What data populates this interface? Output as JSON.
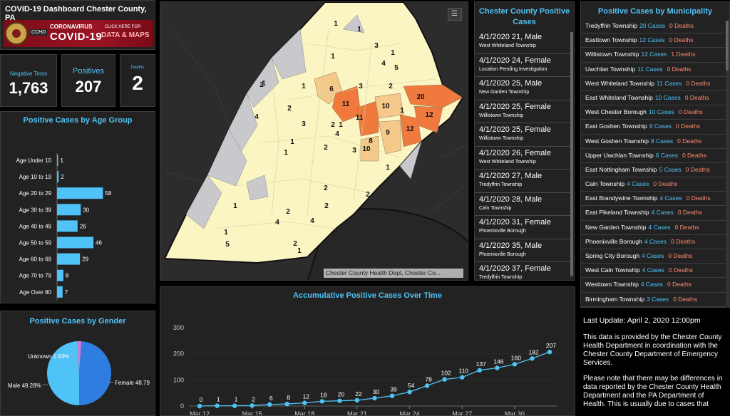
{
  "header": {
    "title": "COVID-19 Dashboard Chester County, PA",
    "banner": {
      "logo_text": "CCHD",
      "line1": "CORONAVIRUS",
      "line2": "COVID-19",
      "cta_small": "CLICK HERE FOR",
      "cta": "DATA & MAPS"
    }
  },
  "counters": {
    "negative": {
      "label": "Negative Tests",
      "value": "1,763"
    },
    "positives": {
      "label": "Positives",
      "value": "207"
    },
    "deaths": {
      "label": "Deaths",
      "value": "2"
    }
  },
  "age_chart": {
    "title": "Positive Cases by Age Group",
    "chart_data": {
      "type": "bar",
      "orientation": "horizontal",
      "categories": [
        "Age Under 10",
        "Age 10 to 19",
        "Age 20 to 29",
        "Age 30 to 39",
        "Age 40 to 49",
        "Age 50 to 59",
        "Age 60 to 69",
        "Age 70 to 79",
        "Age Over 80"
      ],
      "values": [
        1,
        2,
        58,
        30,
        26,
        46,
        29,
        8,
        7
      ],
      "xlim": [
        0,
        100
      ],
      "xticks": [
        "0",
        "50",
        "100"
      ],
      "color": "#4fc3f7"
    }
  },
  "gender_chart": {
    "title": "Positive Cases by Gender",
    "chart_data": {
      "type": "pie",
      "slices": [
        {
          "label": "Female 48.79",
          "value": 48.79,
          "color": "#2f7de1"
        },
        {
          "label": "Male 49.28%",
          "value": 49.28,
          "color": "#4fc3f7"
        },
        {
          "label": "Unknown 1.93%",
          "value": 1.93,
          "color": "#d57ad8"
        }
      ]
    }
  },
  "map": {
    "attribution": "Chester County Health Dept, Chester Co...",
    "labels": [
      {
        "t": "1",
        "x": 470,
        "y": 35
      },
      {
        "t": "1",
        "x": 503,
        "y": 43
      },
      {
        "t": "3",
        "x": 527,
        "y": 66
      },
      {
        "t": "1",
        "x": 550,
        "y": 76
      },
      {
        "t": "4",
        "x": 537,
        "y": 91
      },
      {
        "t": "5",
        "x": 555,
        "y": 97
      },
      {
        "t": "1",
        "x": 466,
        "y": 81
      },
      {
        "t": "1",
        "x": 425,
        "y": 123
      },
      {
        "t": "3",
        "x": 505,
        "y": 123
      },
      {
        "t": "2",
        "x": 547,
        "y": 123
      },
      {
        "t": "2",
        "x": 366,
        "y": 121
      },
      {
        "t": "6",
        "x": 464,
        "y": 127
      },
      {
        "t": "20",
        "x": 589,
        "y": 138
      },
      {
        "t": "11",
        "x": 484,
        "y": 148
      },
      {
        "t": "10",
        "x": 540,
        "y": 151
      },
      {
        "t": "1",
        "x": 563,
        "y": 157
      },
      {
        "t": "12",
        "x": 601,
        "y": 163
      },
      {
        "t": "2",
        "x": 405,
        "y": 154
      },
      {
        "t": "4",
        "x": 359,
        "y": 166
      },
      {
        "t": "11",
        "x": 503,
        "y": 167
      },
      {
        "t": "3",
        "x": 425,
        "y": 176
      },
      {
        "t": "2",
        "x": 466,
        "y": 177
      },
      {
        "t": "1",
        "x": 477,
        "y": 177
      },
      {
        "t": "12",
        "x": 574,
        "y": 183
      },
      {
        "t": "9",
        "x": 543,
        "y": 188
      },
      {
        "t": "4",
        "x": 472,
        "y": 190
      },
      {
        "t": "1",
        "x": 409,
        "y": 201
      },
      {
        "t": "8",
        "x": 519,
        "y": 200
      },
      {
        "t": "10",
        "x": 513,
        "y": 211
      },
      {
        "t": "2",
        "x": 456,
        "y": 209
      },
      {
        "t": "3",
        "x": 496,
        "y": 213
      },
      {
        "t": "1",
        "x": 400,
        "y": 216
      },
      {
        "t": "1",
        "x": 543,
        "y": 237
      },
      {
        "t": "2",
        "x": 456,
        "y": 266
      },
      {
        "t": "2",
        "x": 515,
        "y": 275
      },
      {
        "t": "2",
        "x": 457,
        "y": 291
      },
      {
        "t": "1",
        "x": 329,
        "y": 291
      },
      {
        "t": "2",
        "x": 403,
        "y": 299
      },
      {
        "t": "4",
        "x": 437,
        "y": 312
      },
      {
        "t": "4",
        "x": 388,
        "y": 314
      },
      {
        "t": "1",
        "x": 316,
        "y": 328
      },
      {
        "t": "5",
        "x": 318,
        "y": 345
      },
      {
        "t": "2",
        "x": 413,
        "y": 344
      },
      {
        "t": "1",
        "x": 419,
        "y": 354
      },
      {
        "t": "1",
        "x": 369,
        "y": 119
      }
    ]
  },
  "case_list": {
    "title": "Chester County Positive Cases",
    "items": [
      {
        "case": "4/1/2020  21, Male",
        "place": "West Whiteland Township"
      },
      {
        "case": "4/1/2020  24, Female",
        "place": "Location Pending Investigation"
      },
      {
        "case": "4/1/2020  25, Male",
        "place": "New Garden Township"
      },
      {
        "case": "4/1/2020  25, Female",
        "place": "Willistown Township"
      },
      {
        "case": "4/1/2020  25, Female",
        "place": "Willistown Township"
      },
      {
        "case": "4/1/2020  26, Female",
        "place": "West Whiteland Township"
      },
      {
        "case": "4/1/2020  27, Male",
        "place": "Tredyffrin Township"
      },
      {
        "case": "4/1/2020  28, Male",
        "place": "Caln Township"
      },
      {
        "case": "4/1/2020  31, Female",
        "place": "Phoenixville Borough"
      },
      {
        "case": "4/1/2020  35, Male",
        "place": "Phoenixville Borough"
      },
      {
        "case": "4/1/2020  37, Female",
        "place": "Tredyffrin Township"
      }
    ]
  },
  "municipalities": {
    "title": "Positive Cases by Municipality",
    "items": [
      {
        "name": "Tredyffrin Township",
        "cases": "20 Cases",
        "deaths": "0 Deaths"
      },
      {
        "name": "Easttown Township",
        "cases": "12 Cases",
        "deaths": "0 Deaths"
      },
      {
        "name": "Willistown Township",
        "cases": "12 Cases",
        "deaths": "1 Deaths"
      },
      {
        "name": "Uwchlan Township",
        "cases": "11 Cases",
        "deaths": "0 Deaths"
      },
      {
        "name": "West Whiteland Township",
        "cases": "11 Cases",
        "deaths": "0 Deaths"
      },
      {
        "name": "East Whiteland Township",
        "cases": "10 Cases",
        "deaths": "0 Deaths"
      },
      {
        "name": "West Chester Borough",
        "cases": "10 Cases",
        "deaths": "0 Deaths"
      },
      {
        "name": "East Goshen Township",
        "cases": "9 Cases",
        "deaths": "0 Deaths"
      },
      {
        "name": "West Goshen Township",
        "cases": "8 Cases",
        "deaths": "0 Deaths"
      },
      {
        "name": "Upper Uwchlan Township",
        "cases": "6 Cases",
        "deaths": "0 Deaths"
      },
      {
        "name": "East Nottingham Township",
        "cases": "5 Cases",
        "deaths": "0 Deaths"
      },
      {
        "name": "Caln Township",
        "cases": "4 Cases",
        "deaths": "0 Deaths"
      },
      {
        "name": "East Brandywine Township",
        "cases": "4 Cases",
        "deaths": "0 Deaths"
      },
      {
        "name": "East Pikeland Township",
        "cases": "4 Cases",
        "deaths": "0 Deaths"
      },
      {
        "name": "New Garden Township",
        "cases": "4 Cases",
        "deaths": "0 Deaths"
      },
      {
        "name": "Phoenixville Borough",
        "cases": "4 Cases",
        "deaths": "0 Deaths"
      },
      {
        "name": "Spring City Borough",
        "cases": "4 Cases",
        "deaths": "0 Deaths"
      },
      {
        "name": "West Caln Township",
        "cases": "4 Cases",
        "deaths": "0 Deaths"
      },
      {
        "name": "Westtown Township",
        "cases": "4 Cases",
        "deaths": "0 Deaths"
      },
      {
        "name": "Birmingham Township",
        "cases": "3 Cases",
        "deaths": "0 Deaths"
      }
    ]
  },
  "timeline": {
    "title": "Accumulative Positive Cases Over Time",
    "chart_data": {
      "type": "line",
      "x": [
        "Mar 12",
        "Mar 13",
        "Mar 14",
        "Mar 15",
        "Mar 16",
        "Mar 17",
        "Mar 18",
        "Mar 19",
        "Mar 20",
        "Mar 21",
        "Mar 22",
        "Mar 23",
        "Mar 24",
        "Mar 25",
        "Mar 26",
        "Mar 27",
        "Mar 28",
        "Mar 29",
        "Mar 30",
        "Mar 31",
        "Apr 1"
      ],
      "values": [
        0,
        1,
        1,
        2,
        6,
        8,
        12,
        18,
        20,
        22,
        30,
        39,
        54,
        78,
        102,
        110,
        137,
        146,
        160,
        182,
        207
      ],
      "xticks": [
        "Mar 12",
        "Mar 15",
        "Mar 18",
        "Mar 21",
        "Mar 24",
        "Mar 27",
        "Mar 30"
      ],
      "ylim": [
        0,
        300
      ],
      "yticks": [
        "0",
        "100",
        "200",
        "300"
      ],
      "color": "#4fc3f7"
    }
  },
  "info": {
    "update": "Last Update: April 2, 2020 12:00pm",
    "p1": "This data is provided by the Chester County Health Department in coordination with the Chester County Department of Emergency Services.",
    "p2": "Please note that there may be differences in data reported by the Chester County Health Department and the PA Department of Health. This is usually due to cases that"
  }
}
